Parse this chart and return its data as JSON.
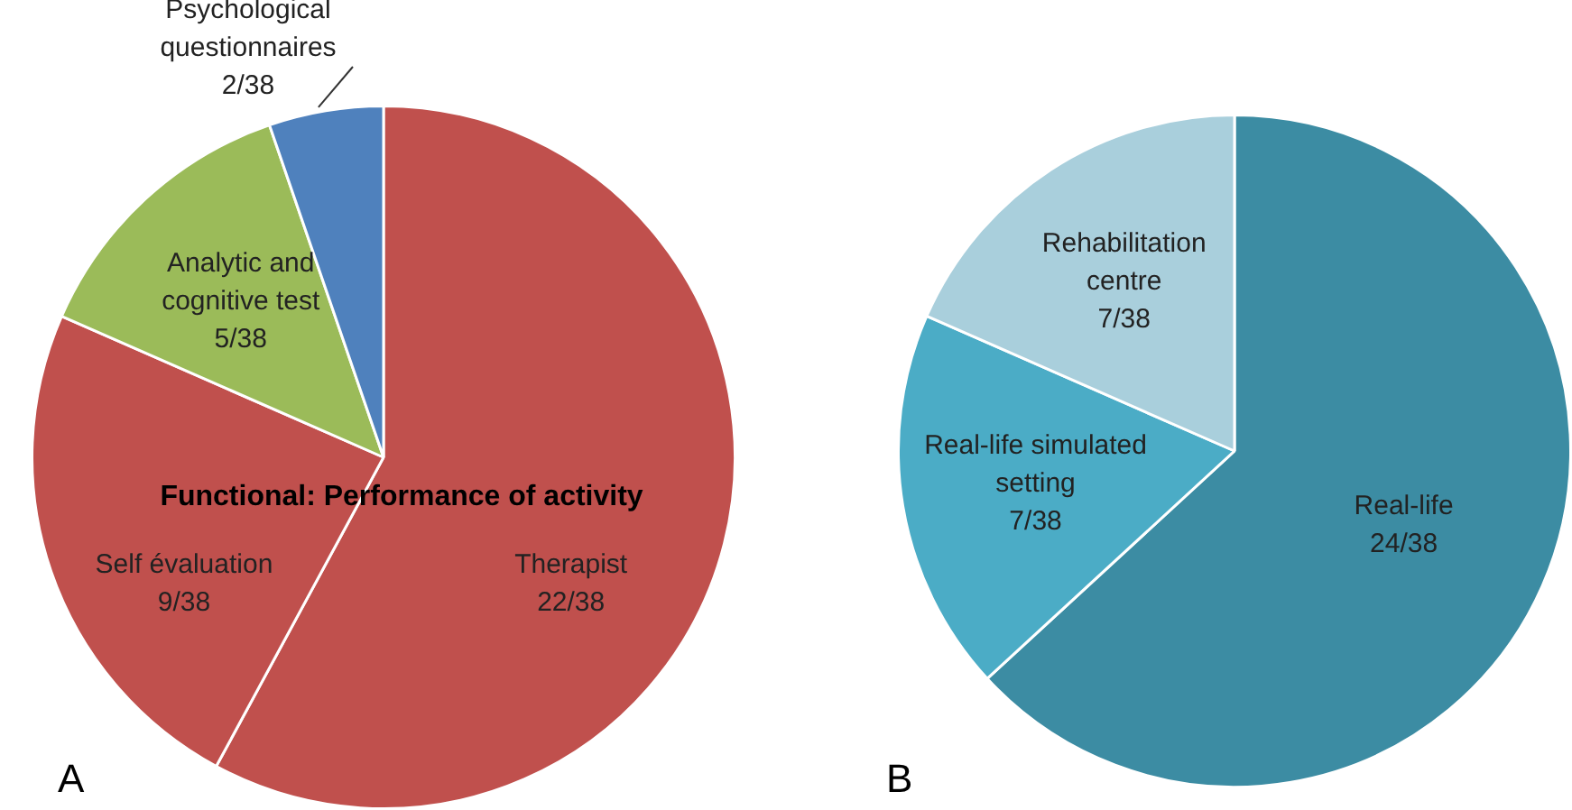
{
  "chart_data": [
    {
      "type": "pie",
      "categories": [
        "Therapist",
        "Self évaluation",
        "Analytic and cognitive test",
        "Psychological questionnaires"
      ],
      "values": [
        22,
        9,
        5,
        2
      ],
      "value_labels": [
        "22/38",
        "9/38",
        "5/38",
        "2/38"
      ],
      "colors": [
        "#c0504d",
        "#c0504d",
        "#9bbb59",
        "#4f81bd"
      ],
      "annotations": [
        "Functional: Performance of activity",
        "A"
      ],
      "legend": false
    },
    {
      "type": "pie",
      "categories": [
        "Real-life",
        "Real-life simulated setting",
        "Rehabilitation centre"
      ],
      "values": [
        24,
        7,
        7
      ],
      "value_labels": [
        "24/38",
        "7/38",
        "7/38"
      ],
      "colors": [
        "#3c8ca3",
        "#4bacc6",
        "#a9cfdc"
      ],
      "annotations": [
        "B"
      ],
      "legend": false
    }
  ]
}
